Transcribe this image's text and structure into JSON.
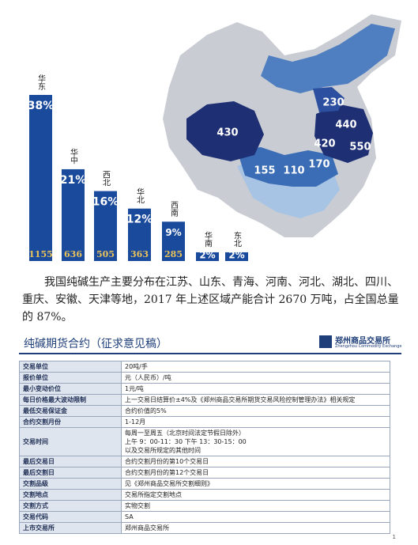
{
  "chart_data": {
    "type": "bar",
    "categories": [
      "华东",
      "华中",
      "西北",
      "华北",
      "西南",
      "华南",
      "东北"
    ],
    "values": [
      38,
      21,
      16,
      12,
      9,
      2,
      2
    ],
    "value_labels": [
      "38%",
      "21%",
      "16%",
      "12%",
      "9%",
      "2%",
      "2%"
    ],
    "capacity": [
      1155,
      636,
      505,
      363,
      285,
      null,
      null
    ],
    "color": "#1a4a9c",
    "capacity_color": "#e8c15a"
  },
  "map": {
    "labels": [
      430,
      230,
      440,
      420,
      550,
      155,
      110,
      170
    ]
  },
  "paragraph": "我国纯碱生产主要分布在江苏、山东、青海、河南、河北、湖北、四川、重庆、安徽、天津等地，2017 年上述区域产能合计 2670 万吨，占全国总量的 87%。",
  "table": {
    "title": "纯碱期货合约（征求意见稿）",
    "logo": "郑州商品交易所",
    "logo_en": "Zhengzhou Commodity Exchange",
    "rows": [
      [
        "交易单位",
        [
          "20吨/手"
        ]
      ],
      [
        "报价单位",
        [
          "元（人民币）/吨"
        ]
      ],
      [
        "最小变动价位",
        [
          "1元/吨"
        ]
      ],
      [
        "每日价格最大波动限制",
        [
          "上一交易日结算价±4%及《郑州商品交易所期货交易风险控制管理办法》相关规定"
        ]
      ],
      [
        "最低交易保证金",
        [
          "合约价值的5%"
        ]
      ],
      [
        "合约交割月份",
        [
          "1-12月"
        ]
      ],
      [
        "交易时间",
        [
          "每周一至周五（北京时间法定节假日除外）",
          "上午 9：00-11：30 下午 13：30-15：00",
          "以及交易所规定的其他时间"
        ]
      ],
      [
        "最后交易日",
        [
          "合约交割月份的第10个交易日"
        ]
      ],
      [
        "最后交割日",
        [
          "合约交割月份的第12个交易日"
        ]
      ],
      [
        "交割品级",
        [
          "见《郑州商品交易所交割细则》"
        ]
      ],
      [
        "交割地点",
        [
          "交易所指定交割地点"
        ]
      ],
      [
        "交割方式",
        [
          "实物交割"
        ]
      ],
      [
        "交易代码",
        [
          "SA"
        ]
      ],
      [
        "上市交易所",
        [
          "郑州商品交易所"
        ]
      ]
    ]
  },
  "page_number": "1"
}
